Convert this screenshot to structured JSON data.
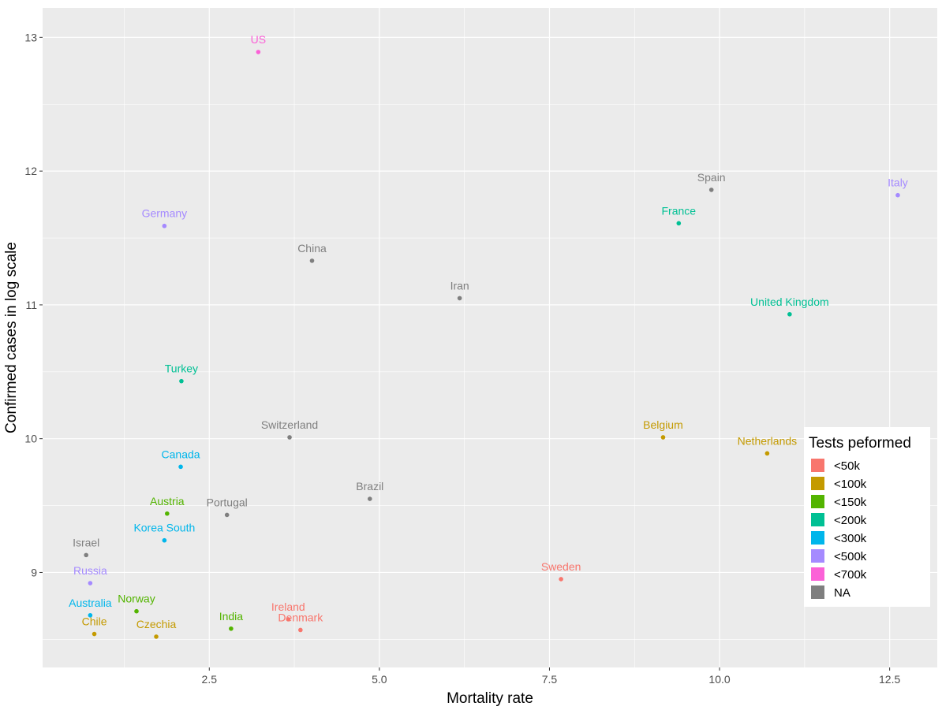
{
  "chart_data": {
    "type": "scatter",
    "xlabel": "Mortality rate",
    "ylabel": "Confirmed cases in log scale",
    "xlim": [
      0.05,
      13.2
    ],
    "ylim": [
      8.29,
      13.22
    ],
    "x_ticks": [
      2.5,
      5.0,
      7.5,
      10.0,
      12.5
    ],
    "x_tick_labels": [
      "2.5",
      "5.0",
      "7.5",
      "10.0",
      "12.5"
    ],
    "y_ticks": [
      9,
      10,
      11,
      12,
      13
    ],
    "y_tick_labels": [
      "9",
      "10",
      "11",
      "12",
      "13"
    ],
    "grid": true,
    "legend": {
      "title": "Tests peformed",
      "placement": "right",
      "entries": [
        {
          "label": "<50k",
          "color": "#F8766D"
        },
        {
          "label": "<100k",
          "color": "#C49A00"
        },
        {
          "label": "<150k",
          "color": "#53B400"
        },
        {
          "label": "<200k",
          "color": "#00C094"
        },
        {
          "label": "<300k",
          "color": "#00B6EB"
        },
        {
          "label": "<500k",
          "color": "#A58AFF"
        },
        {
          "label": "<700k",
          "color": "#FB61D7"
        },
        {
          "label": "NA",
          "color": "#7F7F7F"
        }
      ]
    },
    "points": [
      {
        "label": "US",
        "x": 3.22,
        "y": 12.89,
        "group": "<700k"
      },
      {
        "label": "Spain",
        "x": 9.88,
        "y": 11.86,
        "group": "NA"
      },
      {
        "label": "Italy",
        "x": 12.62,
        "y": 11.82,
        "group": "<500k"
      },
      {
        "label": "Germany",
        "x": 1.84,
        "y": 11.59,
        "group": "<500k"
      },
      {
        "label": "France",
        "x": 9.4,
        "y": 11.61,
        "group": "<200k"
      },
      {
        "label": "China",
        "x": 4.01,
        "y": 11.33,
        "group": "NA"
      },
      {
        "label": "Iran",
        "x": 6.18,
        "y": 11.05,
        "group": "NA"
      },
      {
        "label": "United Kingdom",
        "x": 11.03,
        "y": 10.93,
        "group": "<200k"
      },
      {
        "label": "Turkey",
        "x": 2.09,
        "y": 10.43,
        "group": "<200k"
      },
      {
        "label": "Switzerland",
        "x": 3.68,
        "y": 10.01,
        "group": "NA"
      },
      {
        "label": "Belgium",
        "x": 9.17,
        "y": 10.01,
        "group": "<100k"
      },
      {
        "label": "Netherlands",
        "x": 10.7,
        "y": 9.89,
        "group": "<100k"
      },
      {
        "label": "Canada",
        "x": 2.08,
        "y": 9.79,
        "group": "<300k"
      },
      {
        "label": "Brazil",
        "x": 4.86,
        "y": 9.55,
        "group": "NA"
      },
      {
        "label": "Austria",
        "x": 1.88,
        "y": 9.44,
        "group": "<150k"
      },
      {
        "label": "Portugal",
        "x": 2.76,
        "y": 9.43,
        "group": "NA"
      },
      {
        "label": "Korea South",
        "x": 1.84,
        "y": 9.24,
        "group": "<300k"
      },
      {
        "label": "Israel",
        "x": 0.69,
        "y": 9.13,
        "group": "NA"
      },
      {
        "label": "Sweden",
        "x": 7.67,
        "y": 8.95,
        "group": "<50k"
      },
      {
        "label": "Russia",
        "x": 0.75,
        "y": 8.92,
        "group": "<500k"
      },
      {
        "label": "Norway",
        "x": 1.43,
        "y": 8.71,
        "group": "<150k"
      },
      {
        "label": "Australia",
        "x": 0.75,
        "y": 8.68,
        "group": "<300k"
      },
      {
        "label": "Ireland",
        "x": 3.66,
        "y": 8.65,
        "group": "<50k"
      },
      {
        "label": "Denmark",
        "x": 3.84,
        "y": 8.57,
        "group": "<50k"
      },
      {
        "label": "India",
        "x": 2.82,
        "y": 8.58,
        "group": "<150k"
      },
      {
        "label": "Chile",
        "x": 0.81,
        "y": 8.54,
        "group": "<100k"
      },
      {
        "label": "Czechia",
        "x": 1.72,
        "y": 8.52,
        "group": "<100k"
      }
    ]
  }
}
